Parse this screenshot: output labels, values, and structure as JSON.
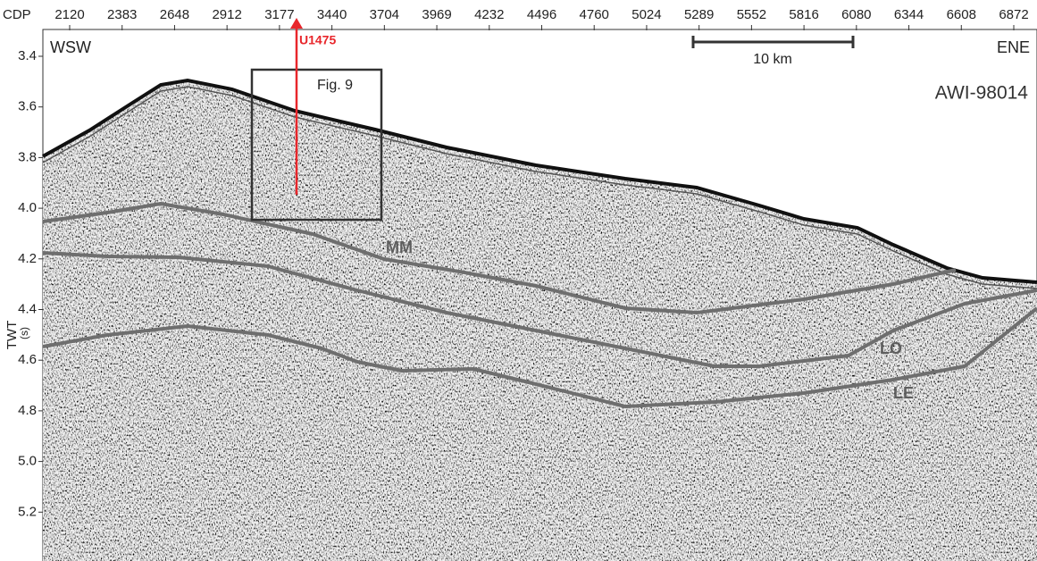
{
  "x_axis": {
    "prefix": "CDP",
    "ticks": [
      "2120",
      "2383",
      "2648",
      "2912",
      "3177",
      "3440",
      "3704",
      "3969",
      "4232",
      "4496",
      "4760",
      "5024",
      "5289",
      "5552",
      "5816",
      "6080",
      "6344",
      "6608",
      "6872"
    ]
  },
  "y_axis": {
    "label": "TWT",
    "unit": "(s)",
    "ticks": [
      "3.4",
      "3.6",
      "3.8",
      "4.0",
      "4.2",
      "4.4",
      "4.6",
      "4.8",
      "5.0",
      "5.2"
    ]
  },
  "profile": {
    "west": "WSW",
    "east": "ENE",
    "name": "AWI-98014"
  },
  "site": "U1475",
  "inset": "Fig. 9",
  "scale_bar": "10 km",
  "horizons": [
    "MM",
    "LO",
    "LE"
  ]
}
